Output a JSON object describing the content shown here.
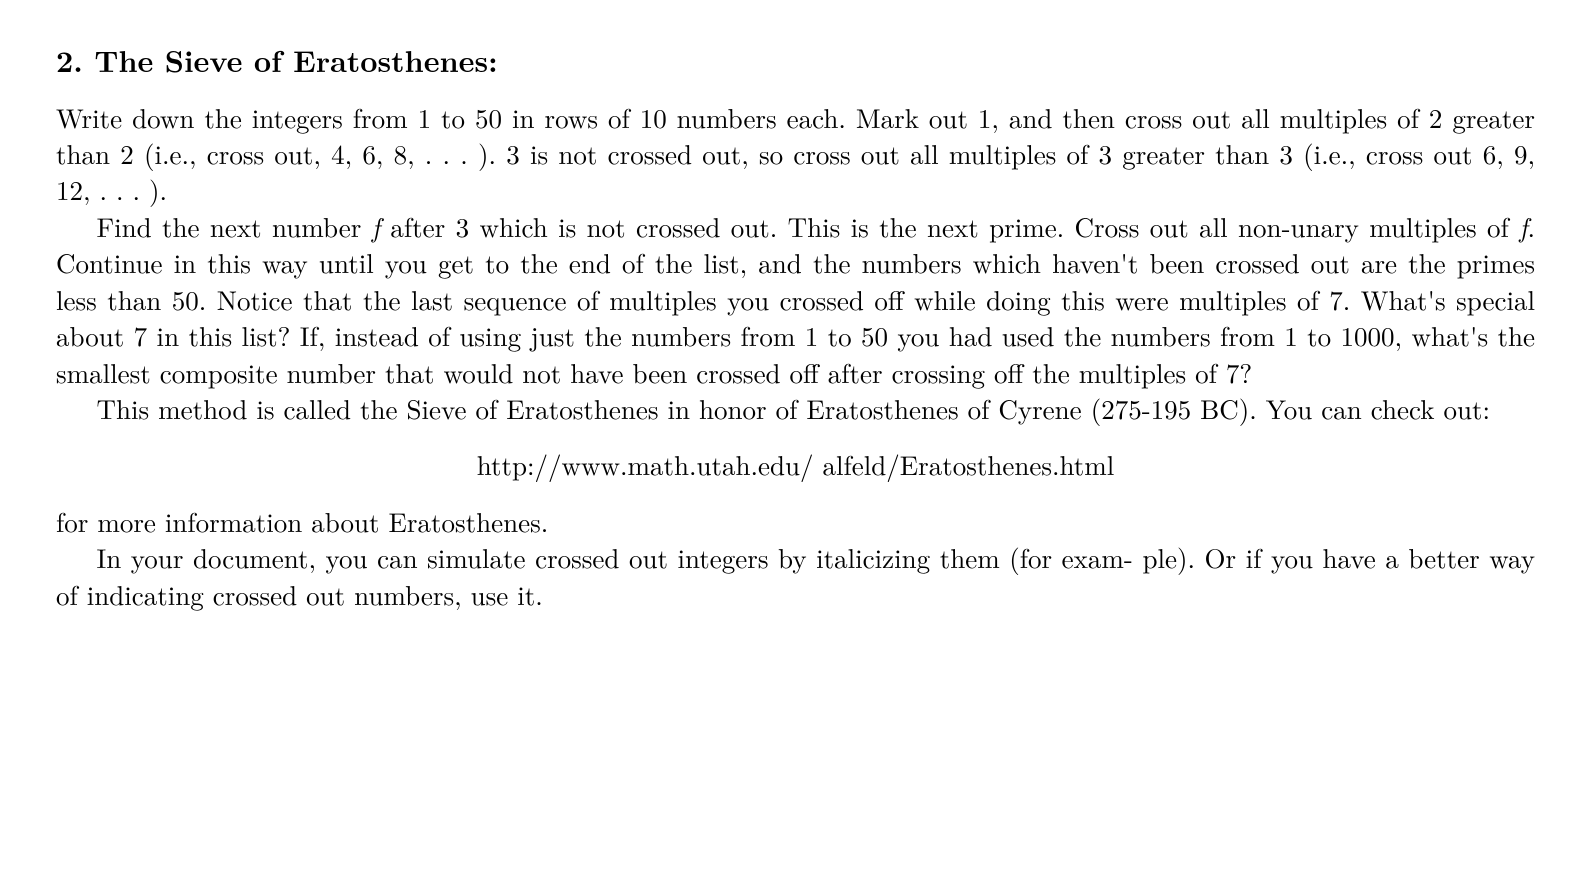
{
  "heading": {
    "number": "2.",
    "title": "The Sieve of Eratosthenes:"
  },
  "para1_a": "Write down the integers from 1 to 50 in rows of 10 numbers each. Mark out 1, and then cross out all multiples of 2 greater than 2 (i.e., cross out, 4, 6, 8, . . . ). 3 is not crossed out, so cross out all multiples of 3 greater than 3 (i.e., cross out 6, 9, 12, . . . ).",
  "para2_a": "Find the next number ",
  "para2_f1": "f",
  "para2_b": " after 3 which is not crossed out. This is the next prime. Cross",
  "para2_c": "out all non-unary multiples of ",
  "para2_f2": "f",
  "para2_d": ". Continue in this way until you get to the end of the list, and the numbers which haven't been crossed out are the primes less than 50. Notice that the last sequence of multiples you crossed off while doing this were multiples of 7. What's special about 7 in this list? If, instead of using just the numbers from 1 to 50 you had used the numbers from 1 to 1000, what's the smallest composite number that would not have been crossed off after crossing off the multiples of 7?",
  "para3": "This method is called the Sieve of Eratosthenes in honor of Eratosthenes of Cyrene",
  "para3_b": "(275-195 BC). You can check out:",
  "url": "http://www.math.utah.edu/ alfeld/Eratosthenes.html",
  "para4": "for more information about Eratosthenes.",
  "para5": "In your document, you can simulate crossed out integers by italicizing them (for exam-",
  "para5_b": "ple). Or if you have a better way of indicating crossed out numbers, use it."
}
